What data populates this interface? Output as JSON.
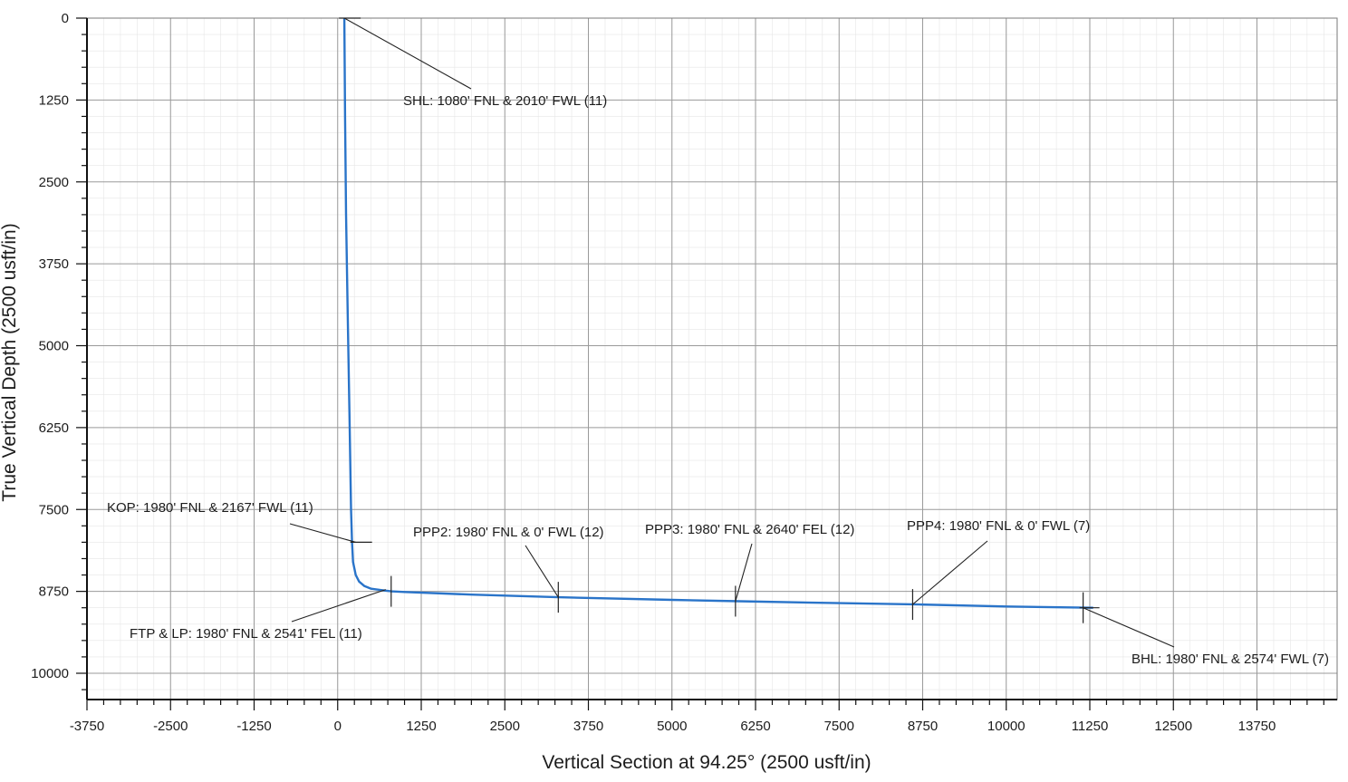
{
  "chart_data": {
    "type": "line",
    "title": "",
    "xlabel": "Vertical Section at 94.25° (2500 usft/in)",
    "ylabel": "True Vertical Depth (2500 usft/in)",
    "xlim": [
      -3750,
      15000
    ],
    "ylim": [
      0,
      10500
    ],
    "y_inverted": true,
    "grid": true,
    "x_ticks": [
      -3750,
      -2500,
      -1250,
      0,
      1250,
      2500,
      3750,
      5000,
      6250,
      7500,
      8750,
      10000,
      11250,
      12500,
      13750
    ],
    "y_ticks": [
      0,
      1250,
      2500,
      3750,
      5000,
      6250,
      7500,
      8750,
      10000
    ],
    "series": [
      {
        "color": "#2a74c9",
        "x": [
          100,
          110,
          125,
          150,
          175,
          200,
          215,
          230,
          270,
          320,
          400,
          500,
          650,
          800,
          1000,
          2000,
          3300,
          5000,
          6000,
          7500,
          8700,
          10000,
          11300
        ],
        "y": [
          0,
          1500,
          3000,
          4500,
          6000,
          7500,
          8000,
          8300,
          8500,
          8600,
          8670,
          8710,
          8730,
          8750,
          8760,
          8800,
          8840,
          8880,
          8900,
          8930,
          8950,
          8980,
          9000
        ]
      }
    ],
    "annotations": [
      {
        "id": "shl",
        "text": "SHL: 1080' FNL & 2010' FWL (11)",
        "x": 100,
        "y": 0
      },
      {
        "id": "kop",
        "text": "KOP: 1980' FNL & 2167' FWL (11)",
        "x": 270,
        "y": 8000
      },
      {
        "id": "ftp",
        "text": "FTP & LP: 1980' FNL & 2541' FEL (11)",
        "x": 800,
        "y": 8750
      },
      {
        "id": "ppp2",
        "text": "PPP2: 1980' FNL & 0' FWL (12)",
        "x": 3300,
        "y": 8840
      },
      {
        "id": "ppp3",
        "text": "PPP3: 1980' FNL & 2640' FEL (12)",
        "x": 5950,
        "y": 8900
      },
      {
        "id": "ppp4",
        "text": "PPP4: 1980' FNL & 0' FWL (7)",
        "x": 8600,
        "y": 8950
      },
      {
        "id": "bhl",
        "text": "BHL: 1980' FNL & 2574' FWL (7)",
        "x": 11150,
        "y": 9000
      }
    ]
  }
}
